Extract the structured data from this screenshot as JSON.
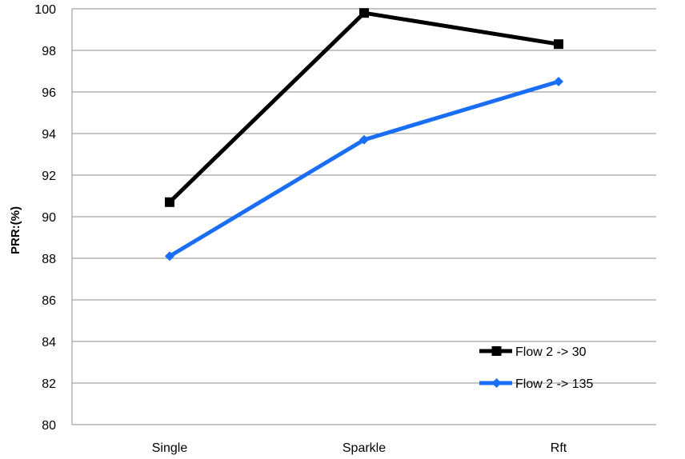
{
  "chart_data": {
    "type": "line",
    "title": "",
    "xlabel": "",
    "ylabel": "PRR:(%)",
    "categories": [
      "Single",
      "Sparkle",
      "Rft"
    ],
    "ylim": [
      80,
      100
    ],
    "yticks": [
      80,
      82,
      84,
      86,
      88,
      90,
      92,
      94,
      96,
      98,
      100
    ],
    "grid": true,
    "legend_position": "bottom-right",
    "series": [
      {
        "name": "Flow 2 -> 30",
        "values": [
          90.7,
          99.8,
          98.3
        ],
        "color": "#000000",
        "marker": "square"
      },
      {
        "name": "Flow 2 -> 135",
        "values": [
          88.1,
          93.7,
          96.5
        ],
        "color": "#1a6ef5",
        "marker": "diamond"
      }
    ]
  }
}
